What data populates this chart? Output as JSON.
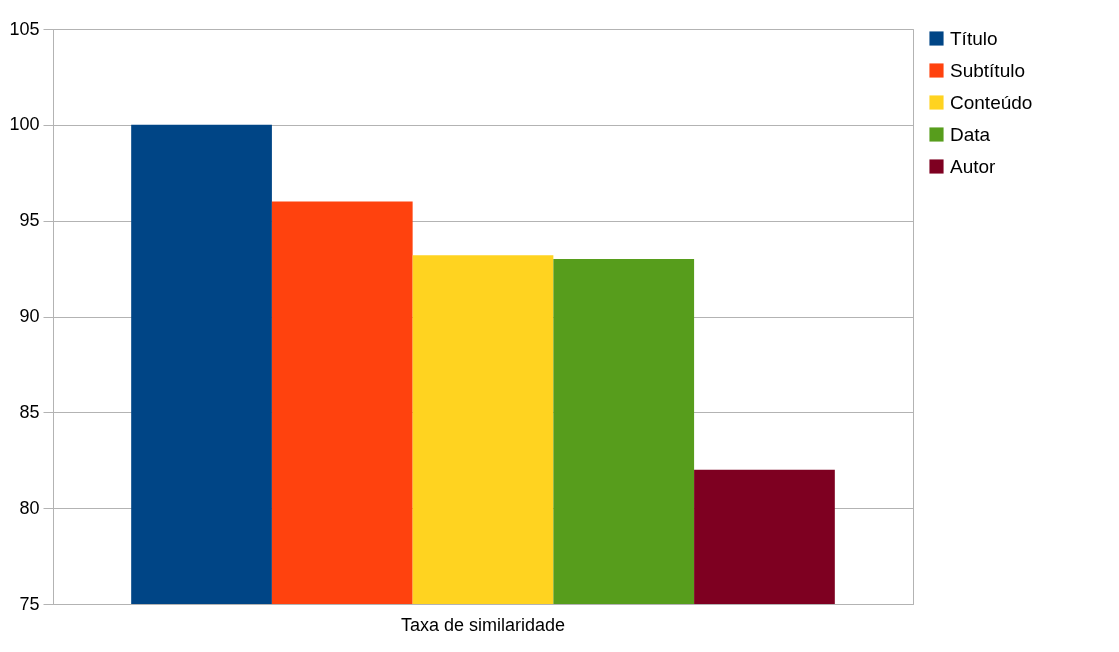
{
  "chart_data": {
    "type": "bar",
    "categories": [
      "Taxa de similaridade"
    ],
    "series": [
      {
        "name": "Título",
        "color": "#004586",
        "values": [
          100
        ]
      },
      {
        "name": "Subtítulo",
        "color": "#ff420e",
        "values": [
          96
        ]
      },
      {
        "name": "Conteúdo",
        "color": "#ffd320",
        "values": [
          93.2
        ]
      },
      {
        "name": "Data",
        "color": "#579d1c",
        "values": [
          93
        ]
      },
      {
        "name": "Autor",
        "color": "#7e0021",
        "values": [
          82
        ]
      }
    ],
    "ylim": [
      75,
      105
    ],
    "yticks": [
      75,
      80,
      85,
      90,
      95,
      100,
      105
    ],
    "grid": "y",
    "legend": "right"
  }
}
